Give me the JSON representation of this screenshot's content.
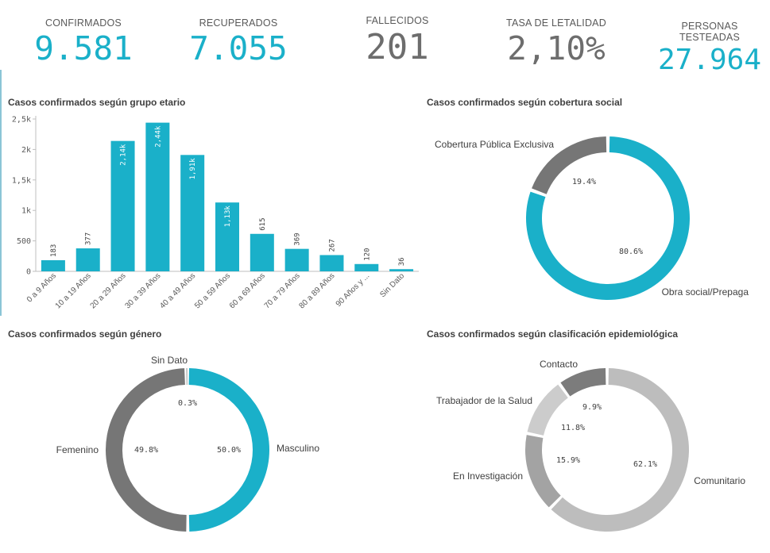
{
  "kpis": [
    {
      "label": "CONFIRMADOS",
      "value": "9.581",
      "color": "#1ab0c9"
    },
    {
      "label": "RECUPERADOS",
      "value": "7.055",
      "color": "#1ab0c9"
    },
    {
      "label": "FALLECIDOS",
      "value": "201",
      "color": "#6d6d6d"
    },
    {
      "label": "TASA DE LETALIDAD",
      "value": "2,10%",
      "color": "#6d6d6d"
    },
    {
      "label": "PERSONAS TESTEADAS",
      "value": "27.964",
      "color": "#1ab0c9"
    }
  ],
  "chart_data": [
    {
      "type": "bar",
      "title": "Casos confirmados según grupo etario",
      "categories": [
        "0 a 9 Años",
        "10 a 19 Años",
        "20 a 29 Años",
        "30 a 39 Años",
        "40 a 49 Años",
        "50 a 59 Años",
        "60 a 69 Años",
        "70 a 79 Años",
        "80 a 89 Años",
        "90 Años y ...",
        "Sin Dato"
      ],
      "values": [
        183,
        377,
        2140,
        2440,
        1910,
        1130,
        615,
        369,
        267,
        120,
        36
      ],
      "value_labels": [
        "183",
        "377",
        "2,14k",
        "2,44k",
        "1,91k",
        "1,13k",
        "615",
        "369",
        "267",
        "120",
        "36"
      ],
      "yticks": [
        "0",
        "500",
        "1k",
        "1,5k",
        "2k",
        "2,5k"
      ],
      "ylim": [
        0,
        2500
      ],
      "color": "#1ab0c9"
    },
    {
      "type": "pie",
      "title": "Casos confirmados según cobertura social",
      "slices": [
        {
          "name": "Cobertura Pública Exclusiva",
          "value": 19.4,
          "label": "19.4%",
          "color": "#767676"
        },
        {
          "name": "Obra social/Prepaga",
          "value": 80.6,
          "label": "80.6%",
          "color": "#1ab0c9"
        }
      ]
    },
    {
      "type": "pie",
      "title": "Casos confirmados según género",
      "slices": [
        {
          "name": "Masculino",
          "value": 50.0,
          "label": "50.0%",
          "color": "#1ab0c9"
        },
        {
          "name": "Femenino",
          "value": 49.8,
          "label": "49.8%",
          "color": "#767676"
        },
        {
          "name": "Sin Dato",
          "value": 0.3,
          "label": "0.3%",
          "color": "#a0a0a0"
        }
      ]
    },
    {
      "type": "pie",
      "title": "Casos confirmados según clasificación epidemiológica",
      "slices": [
        {
          "name": "Comunitario",
          "value": 62.1,
          "label": "62.1%",
          "color": "#bdbdbd"
        },
        {
          "name": "En Investigación",
          "value": 15.9,
          "label": "15.9%",
          "color": "#a3a3a3"
        },
        {
          "name": "Trabajador de la Salud",
          "value": 11.8,
          "label": "11.8%",
          "color": "#cccccc"
        },
        {
          "name": "Contacto",
          "value": 9.9,
          "label": "9.9%",
          "color": "#7c7c7c"
        }
      ]
    }
  ]
}
